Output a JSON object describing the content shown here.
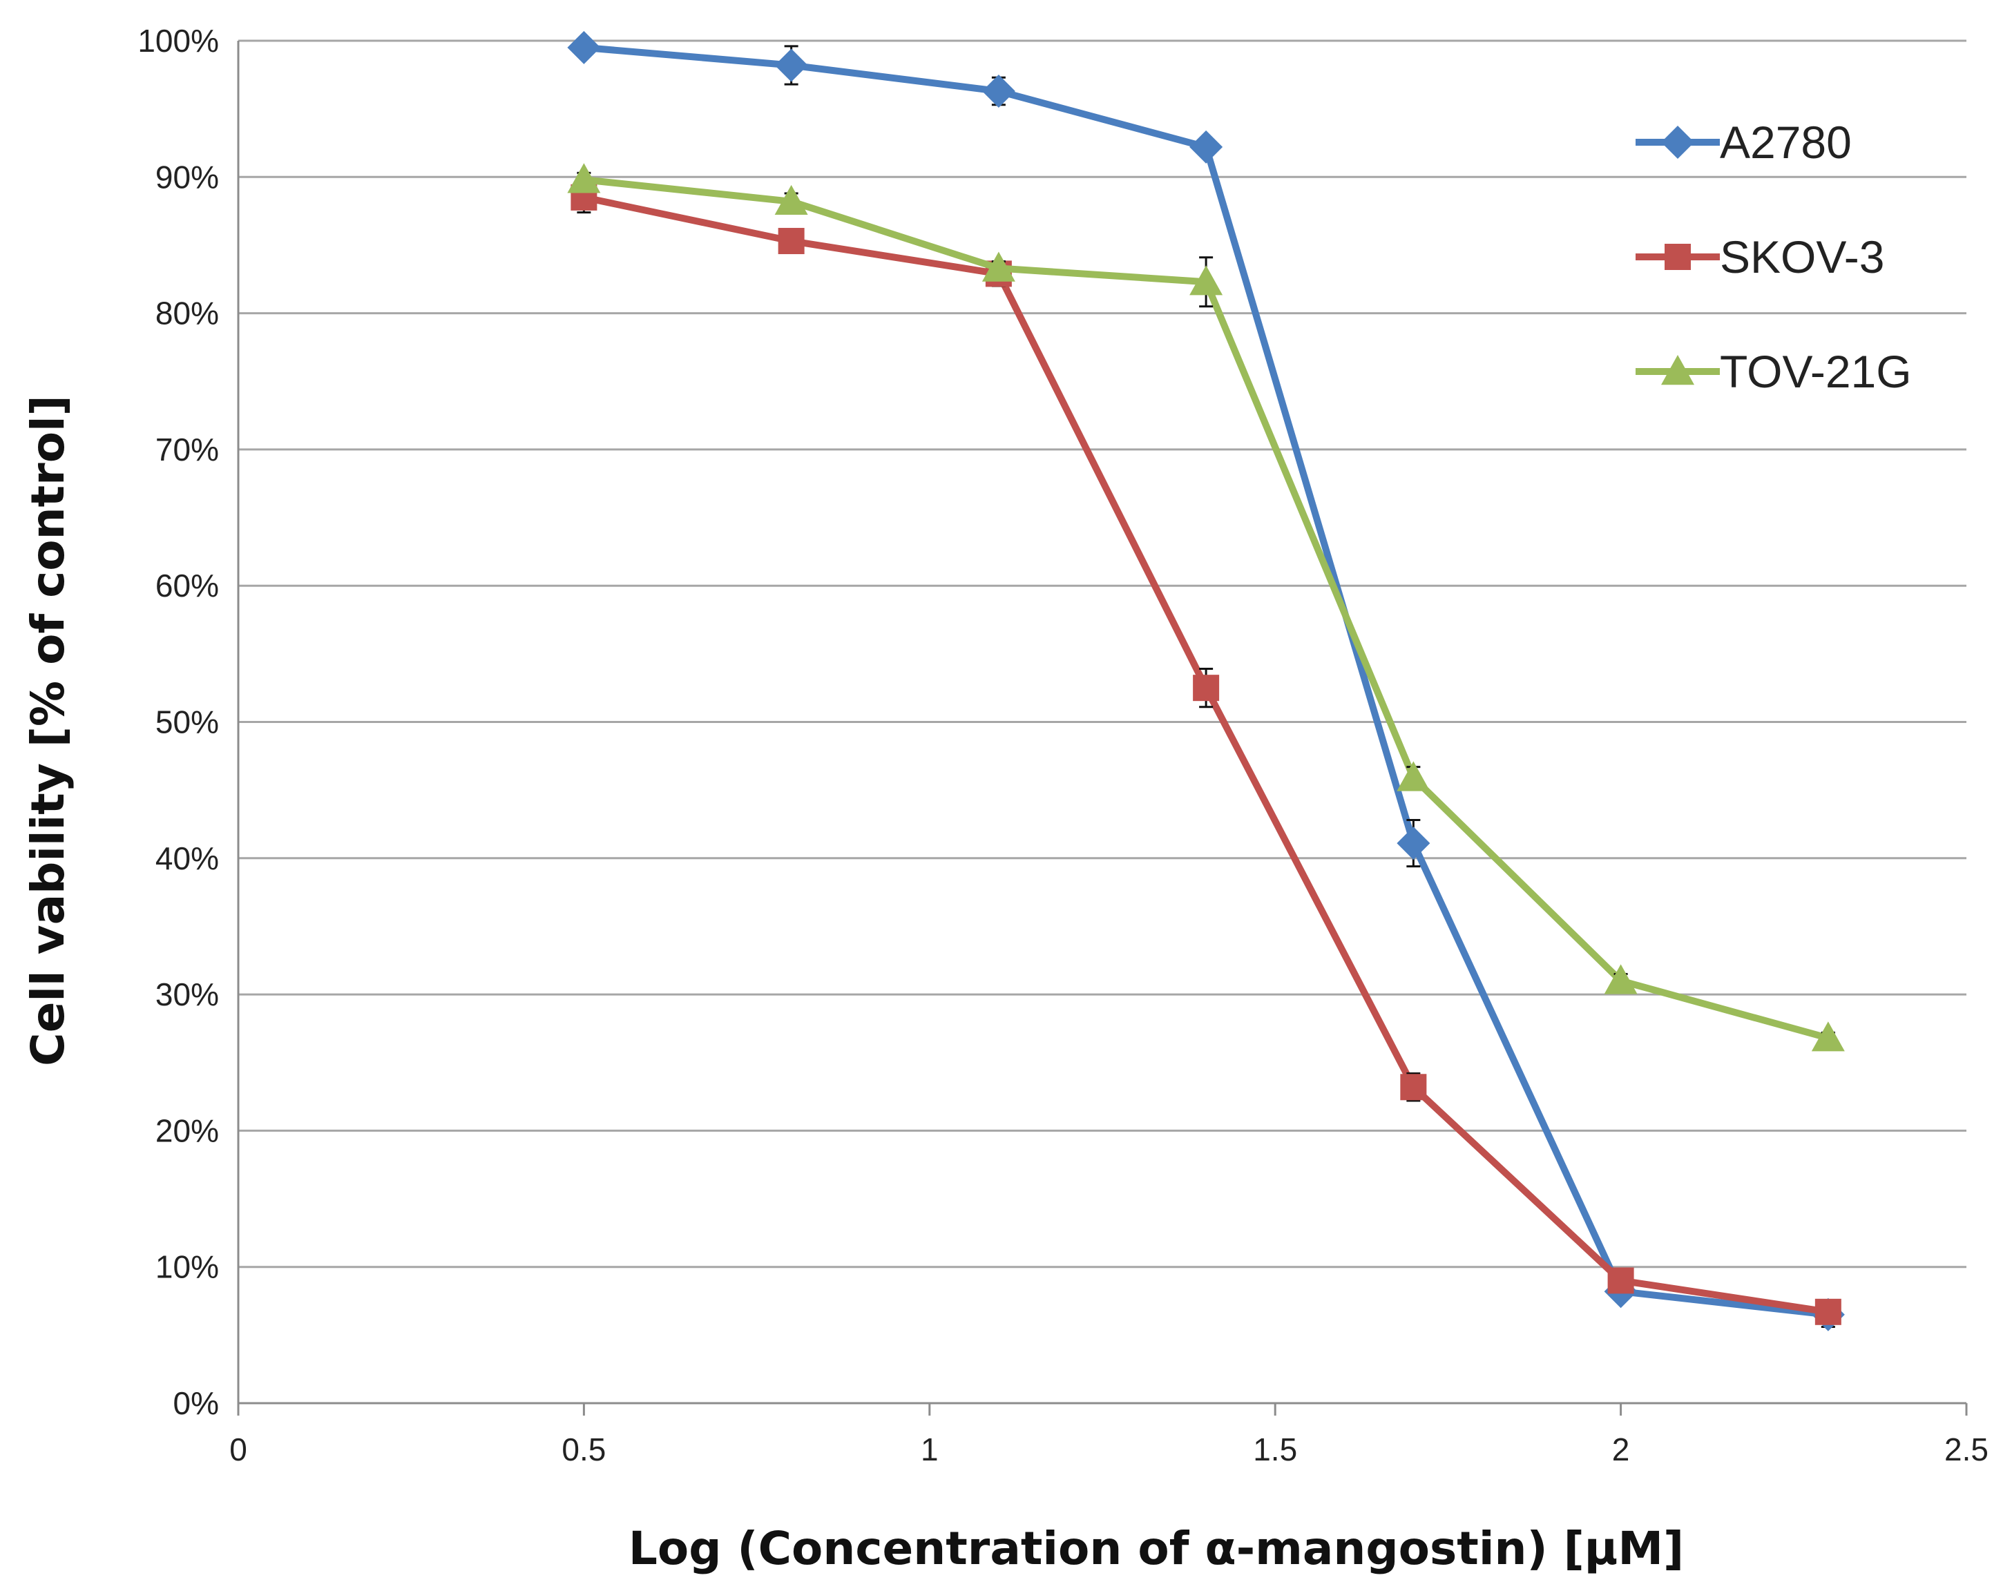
{
  "chart_data": {
    "type": "line",
    "xlabel": "Log (Concentration of α-mangostin) [μM]",
    "ylabel": "Cell vability [% of control]",
    "xlim": [
      0,
      2.5
    ],
    "ylim": [
      0,
      100
    ],
    "x_ticks": [
      0,
      0.5,
      1,
      1.5,
      2,
      2.5
    ],
    "x_tick_labels": [
      "0",
      "0.5",
      "1",
      "1.5",
      "2",
      "2.5"
    ],
    "y_ticks": [
      0,
      10,
      20,
      30,
      40,
      50,
      60,
      70,
      80,
      90,
      100
    ],
    "y_tick_labels": [
      "0%",
      "10%",
      "20%",
      "30%",
      "40%",
      "50%",
      "60%",
      "70%",
      "80%",
      "90%",
      "100%"
    ],
    "grid": "horizontal",
    "legend_position": "top-right",
    "x": [
      0.5,
      0.8,
      1.1,
      1.4,
      1.7,
      2.0,
      2.3
    ],
    "series": [
      {
        "name": "A2780",
        "color": "#4a7ebf",
        "marker": "diamond",
        "values": [
          99.5,
          98.2,
          96.3,
          92.2,
          41.1,
          8.2,
          6.5
        ],
        "errors": [
          0.6,
          1.4,
          1.0,
          0.5,
          1.7,
          0.4,
          0.9
        ]
      },
      {
        "name": "SKOV-3",
        "color": "#c0504d",
        "marker": "square",
        "values": [
          88.5,
          85.3,
          82.9,
          52.5,
          23.2,
          9.0,
          6.7
        ],
        "errors": [
          1.1,
          0.4,
          0.9,
          1.4,
          1.0,
          0.5,
          0.5
        ]
      },
      {
        "name": "TOV-21G",
        "color": "#9bbb59",
        "marker": "triangle",
        "values": [
          89.8,
          88.2,
          83.3,
          82.3,
          45.9,
          31.0,
          26.8
        ],
        "errors": [
          0.5,
          0.6,
          0.5,
          1.8,
          0.8,
          0.5,
          0.4
        ]
      }
    ]
  }
}
